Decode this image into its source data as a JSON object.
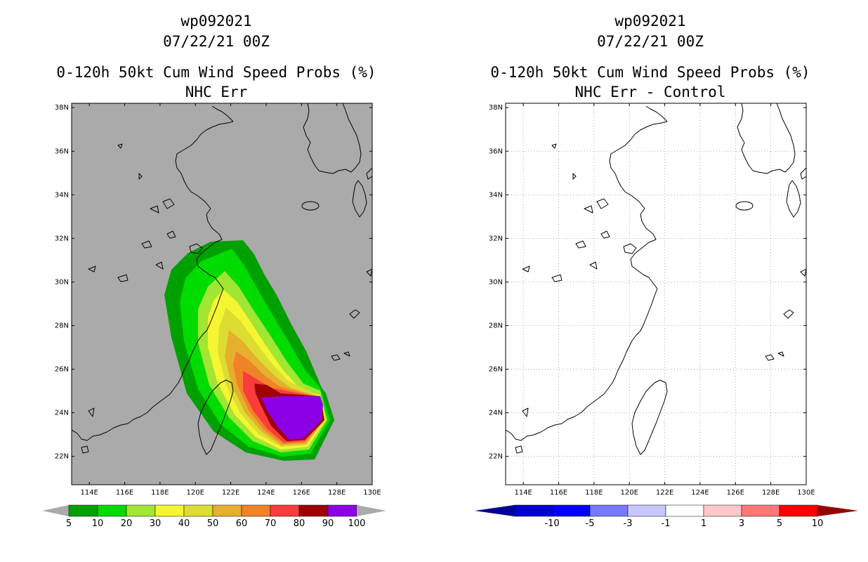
{
  "left_panel": {
    "storm_id": "wp092021",
    "datetime": "07/22/21 00Z",
    "product": "0-120h 50kt Cum Wind Speed Probs (%)",
    "subtitle": "NHC Err",
    "background_color": "#aaaaaa",
    "colorbar": {
      "labels": [
        "5",
        "10",
        "20",
        "30",
        "40",
        "50",
        "60",
        "70",
        "80",
        "90",
        "100"
      ],
      "colors": [
        "#00a000",
        "#00dc00",
        "#a0e632",
        "#f5f532",
        "#dcdc32",
        "#e6af2d",
        "#f08228",
        "#fa3c3c",
        "#a00000",
        "#8c00e6"
      ]
    }
  },
  "right_panel": {
    "storm_id": "wp092021",
    "datetime": "07/22/21 00Z",
    "product": "0-120h 50kt Cum Wind Speed Probs (%)",
    "subtitle": "NHC Err - Control",
    "background_color": "#ffffff",
    "colorbar": {
      "labels": [
        "-10",
        "-5",
        "-3",
        "-1",
        "1",
        "3",
        "5",
        "10"
      ],
      "colors": [
        "#0000d2",
        "#0000ff",
        "#7878ff",
        "#c8c8ff",
        "#ffffff",
        "#ffc8c8",
        "#ff7878",
        "#ff0000",
        "#d20000"
      ],
      "low_arrow_color": "#000096",
      "high_arrow_color": "#960000"
    }
  },
  "axes": {
    "lon_labels": [
      "114E",
      "116E",
      "118E",
      "120E",
      "122E",
      "124E",
      "126E",
      "128E",
      "130E"
    ],
    "lat_labels": [
      "22N",
      "24N",
      "26N",
      "28N",
      "30N",
      "32N",
      "34N",
      "36N",
      "38N"
    ]
  }
}
